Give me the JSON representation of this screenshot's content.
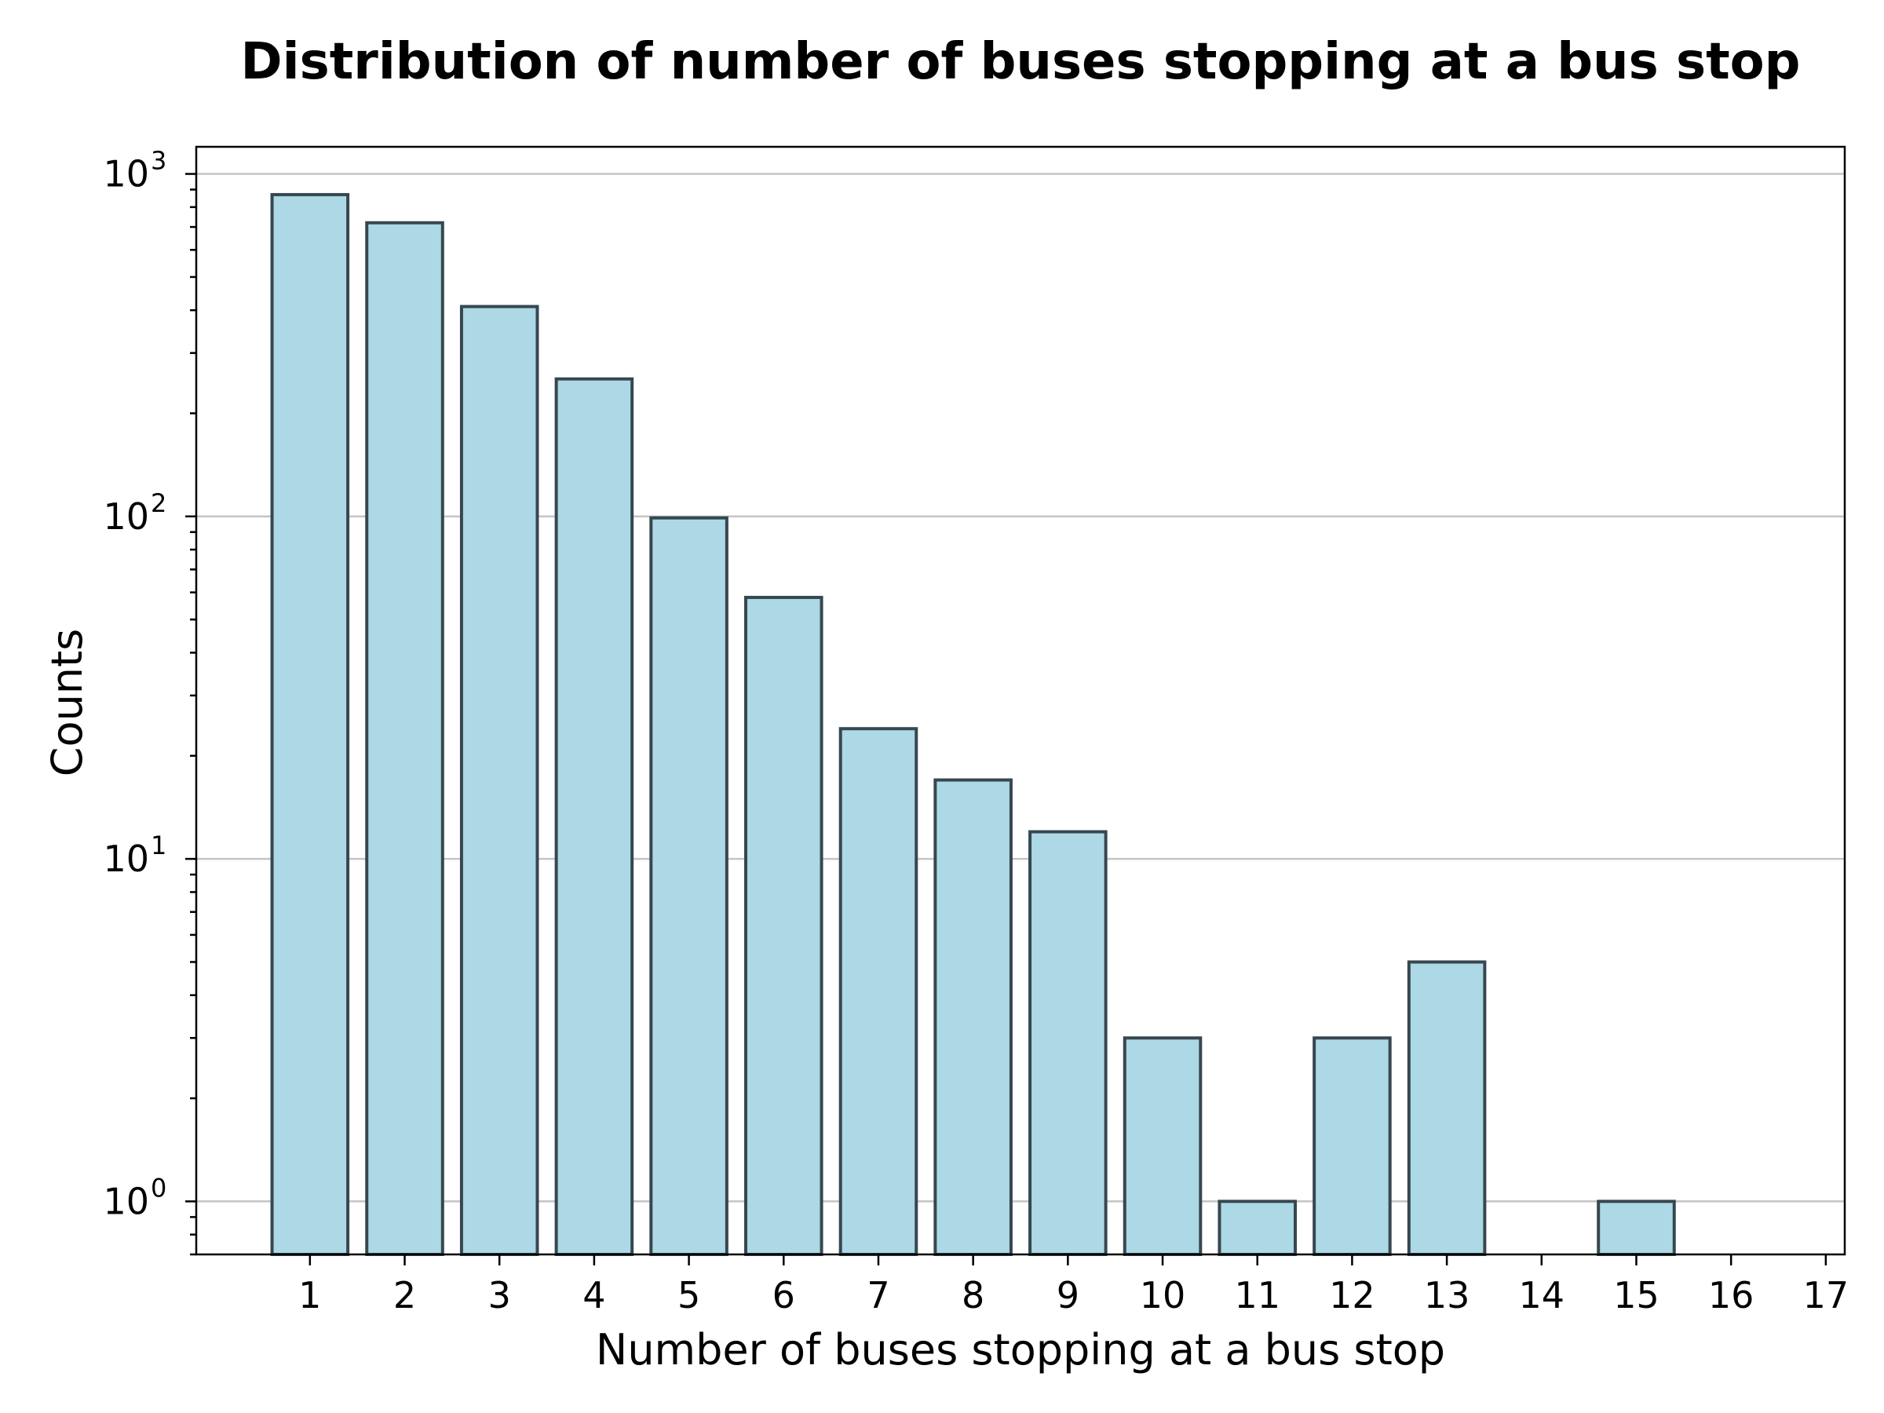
{
  "chart_data": {
    "type": "bar",
    "title": "Distribution of number of buses stopping at a bus stop",
    "xlabel": "Number of buses stopping at a bus stop",
    "ylabel": "Counts",
    "yscale": "log",
    "ylim": [
      0.7,
      1200
    ],
    "xlim": [
      -0.2,
      17.2
    ],
    "grid": "y-major",
    "bar_color": "#ADD8E6",
    "edge_color": "#37474F",
    "categories": [
      1,
      2,
      3,
      4,
      5,
      6,
      7,
      8,
      9,
      10,
      11,
      12,
      13,
      14,
      15,
      16,
      17
    ],
    "values": [
      870,
      720,
      410,
      252,
      99,
      58,
      24,
      17,
      12,
      3,
      1,
      3,
      5,
      0,
      1,
      0,
      0
    ],
    "x_ticks": [
      "1",
      "2",
      "3",
      "4",
      "5",
      "6",
      "7",
      "8",
      "9",
      "10",
      "11",
      "12",
      "13",
      "14",
      "15",
      "16",
      "17"
    ],
    "y_ticks": [
      {
        "base": "10",
        "exp": "0",
        "value": 1
      },
      {
        "base": "10",
        "exp": "1",
        "value": 10
      },
      {
        "base": "10",
        "exp": "2",
        "value": 100
      },
      {
        "base": "10",
        "exp": "3",
        "value": 1000
      }
    ]
  }
}
